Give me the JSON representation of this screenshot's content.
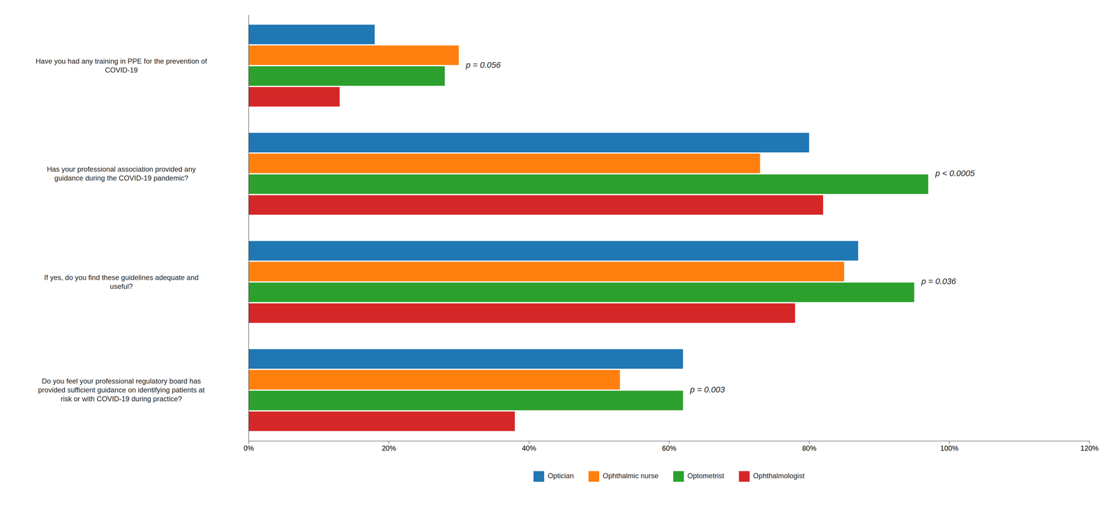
{
  "chart_data": {
    "type": "bar",
    "orientation": "horizontal",
    "categories": [
      "Have you had any training in PPE for the prevention of\nCOVID-19",
      "Has your professional association provided any\nguidance during the COVID-19 pandemic?",
      "If yes, do you find these guidelines adequate and\nuseful?",
      "Do you feel your professional regulatory board has\nprovided sufficient guidance on identifying patients at\nrisk or with COVID-19 during practice?"
    ],
    "series": [
      {
        "name": "Optician",
        "values": [
          18,
          80,
          87,
          62
        ]
      },
      {
        "name": "Ophthalmic nurse",
        "values": [
          30,
          73,
          85,
          53
        ]
      },
      {
        "name": "Optometrist",
        "values": [
          28,
          97,
          95,
          62
        ]
      },
      {
        "name": "Ophthalmologist",
        "values": [
          13,
          82,
          78,
          38
        ]
      }
    ],
    "annotations": [
      {
        "text": "p = 0.056"
      },
      {
        "text": "p < 0.0005"
      },
      {
        "text": "p = 0.036"
      },
      {
        "text": "p = 0.003"
      }
    ],
    "xlim": [
      0,
      120
    ],
    "xticks": [
      {
        "value": 0,
        "label": "0%"
      },
      {
        "value": 20,
        "label": "20%"
      },
      {
        "value": 40,
        "label": "40%"
      },
      {
        "value": 60,
        "label": "60%"
      },
      {
        "value": 80,
        "label": "80%"
      },
      {
        "value": 100,
        "label": "100%"
      },
      {
        "value": 120,
        "label": "120%"
      }
    ],
    "grid": false,
    "legend": "bottom"
  }
}
